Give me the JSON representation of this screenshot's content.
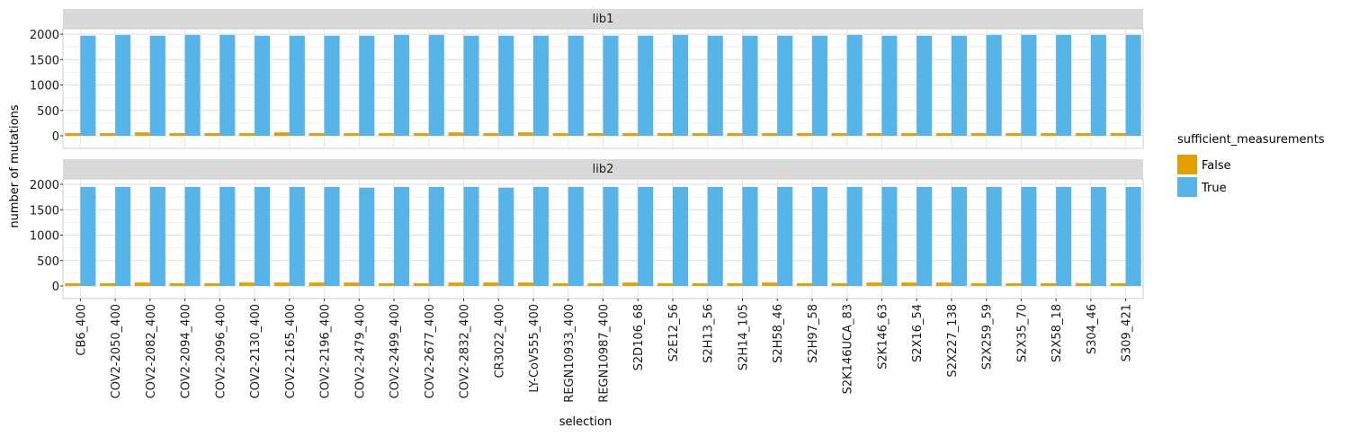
{
  "chart_data": {
    "type": "bar",
    "xlabel": "selection",
    "ylabel": "number of mutations",
    "ylim": [
      0,
      2000
    ],
    "yticks": [
      0,
      500,
      1000,
      1500,
      2000
    ],
    "grid": true,
    "legend": {
      "title": "sufficient_measurements",
      "position": "right"
    },
    "categories": [
      "CB6_400",
      "COV2-2050_400",
      "COV2-2082_400",
      "COV2-2094_400",
      "COV2-2096_400",
      "COV2-2130_400",
      "COV2-2165_400",
      "COV2-2196_400",
      "COV2-2479_400",
      "COV2-2499_400",
      "COV2-2677_400",
      "COV2-2832_400",
      "CR3022_400",
      "LY-CoV555_400",
      "REGN10933_400",
      "REGN10987_400",
      "S2D106_68",
      "S2E12_56",
      "S2H13_56",
      "S2H14_105",
      "S2H58_46",
      "S2H97_58",
      "S2K146UCA_83",
      "S2K146_63",
      "S2X16_54",
      "S2X227_138",
      "S2X259_59",
      "S2X35_70",
      "S2X58_18",
      "S304_46",
      "S309_421"
    ],
    "series_colors": {
      "False": "#E69F00",
      "True": "#56B4E9"
    },
    "panels": [
      {
        "label": "lib1",
        "series": [
          {
            "name": "False",
            "values": [
              52,
              52,
              67,
              52,
              52,
              52,
              67,
              52,
              52,
              52,
              52,
              67,
              52,
              67,
              52,
              52,
              52,
              52,
              52,
              52,
              52,
              52,
              52,
              52,
              52,
              52,
              52,
              52,
              52,
              52,
              52
            ]
          },
          {
            "name": "True",
            "values": [
              1970,
              1985,
              1970,
              1985,
              1985,
              1970,
              1970,
              1970,
              1970,
              1985,
              1985,
              1970,
              1970,
              1970,
              1970,
              1970,
              1970,
              1985,
              1970,
              1970,
              1970,
              1970,
              1985,
              1970,
              1970,
              1970,
              1985,
              1985,
              1985,
              1985,
              1985
            ]
          }
        ]
      },
      {
        "label": "lib2",
        "series": [
          {
            "name": "False",
            "values": [
              52,
              52,
              67,
              52,
              52,
              67,
              67,
              67,
              67,
              52,
              52,
              67,
              67,
              67,
              52,
              52,
              67,
              52,
              52,
              52,
              67,
              52,
              52,
              67,
              67,
              67,
              52,
              52,
              52,
              52,
              52
            ]
          },
          {
            "name": "True",
            "values": [
              1950,
              1950,
              1950,
              1950,
              1950,
              1950,
              1950,
              1950,
              1935,
              1950,
              1950,
              1950,
              1935,
              1950,
              1950,
              1950,
              1950,
              1950,
              1950,
              1950,
              1950,
              1950,
              1950,
              1950,
              1950,
              1950,
              1950,
              1950,
              1950,
              1950,
              1950
            ]
          }
        ]
      }
    ]
  }
}
